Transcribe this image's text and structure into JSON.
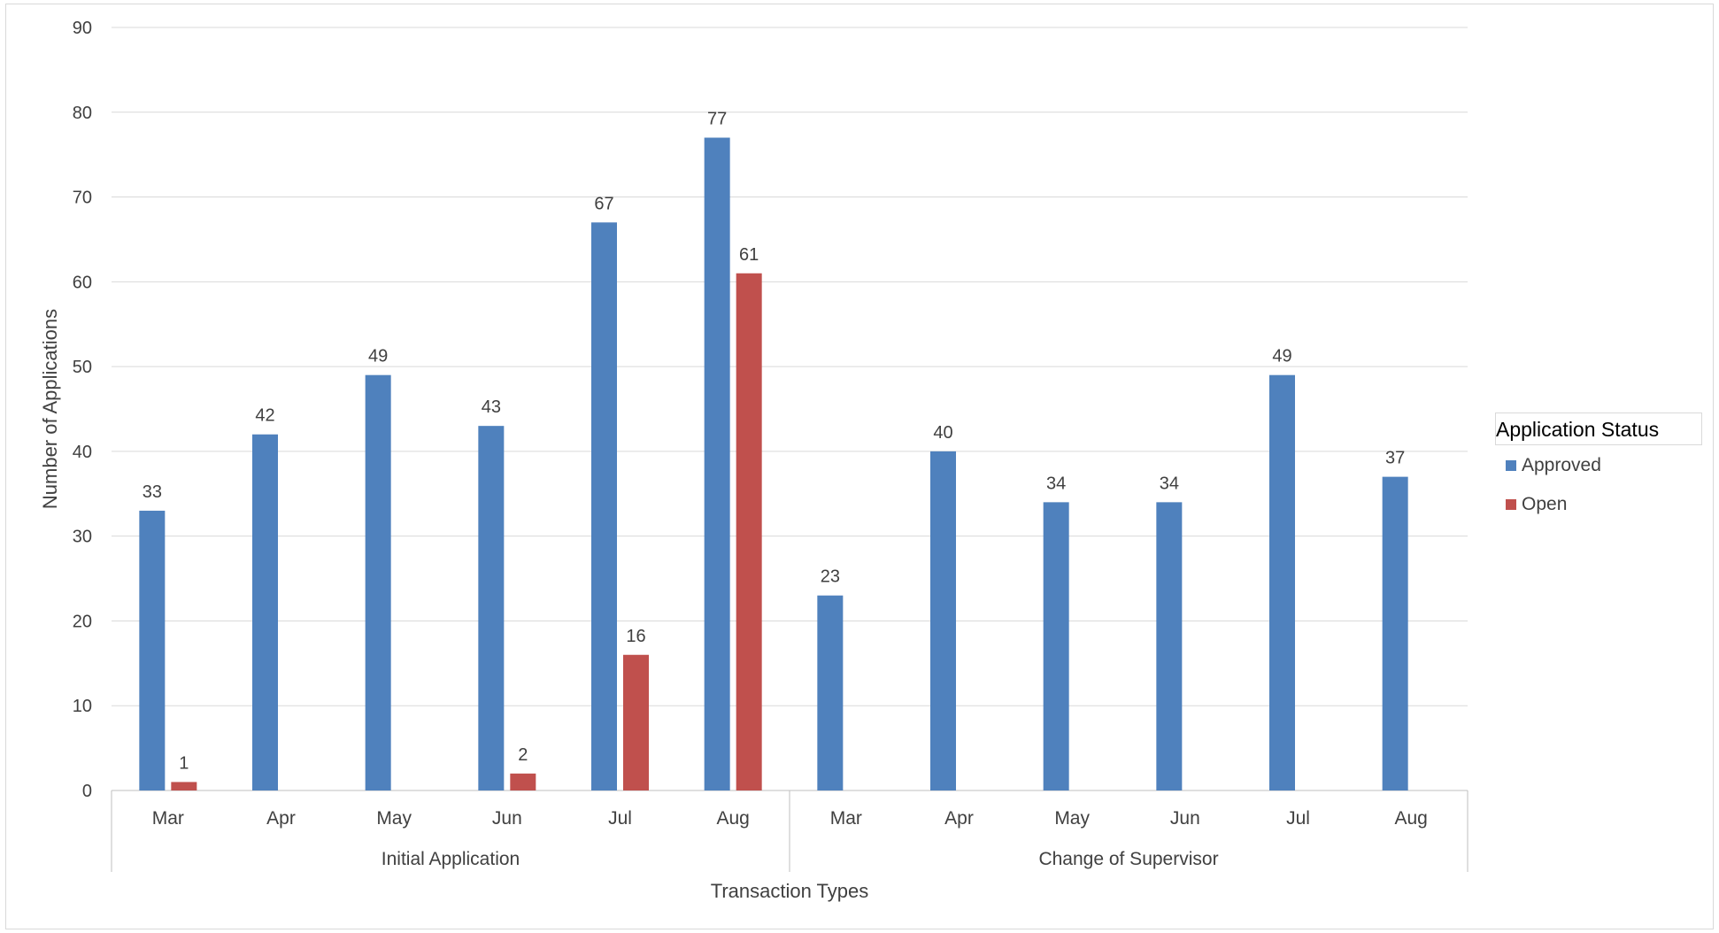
{
  "chart_data": {
    "type": "bar",
    "ylabel": "Number of Applications",
    "xlabel": "Transaction Types",
    "ylim": [
      0,
      90
    ],
    "yticks": [
      0,
      10,
      20,
      30,
      40,
      50,
      60,
      70,
      80,
      90
    ],
    "grid": true,
    "groups": [
      {
        "name": "Initial Application",
        "categories": [
          "Mar",
          "Apr",
          "May",
          "Jun",
          "Jul",
          "Aug"
        ]
      },
      {
        "name": "Change of Supervisor",
        "categories": [
          "Mar",
          "Apr",
          "May",
          "Jun",
          "Jul",
          "Aug"
        ]
      }
    ],
    "series": [
      {
        "name": "Approved",
        "color": "#4f81bd",
        "values": [
          33,
          42,
          49,
          43,
          67,
          77,
          23,
          40,
          34,
          34,
          49,
          37
        ]
      },
      {
        "name": "Open",
        "color": "#c0504d",
        "values": [
          1,
          null,
          null,
          2,
          16,
          61,
          null,
          null,
          null,
          null,
          null,
          null
        ]
      }
    ],
    "legend": {
      "title": "Application Status",
      "position": "right"
    }
  }
}
